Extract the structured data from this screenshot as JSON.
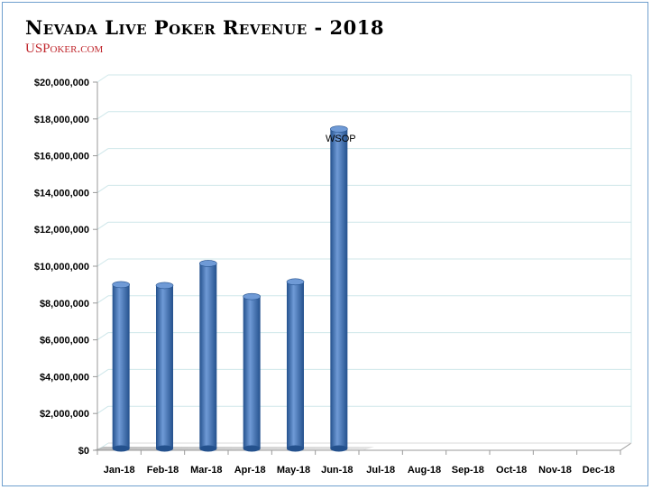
{
  "title": "Nevada Live Poker Revenue - 2018",
  "source": "USPoker.com",
  "colors": {
    "bar": "#3f73b8",
    "bar_light": "#6f9ad6",
    "bar_dark": "#24518d",
    "frame": "#6f9fce",
    "grid": "#cfe7ea",
    "source": "#c0272d"
  },
  "chart_data": {
    "type": "bar",
    "title": "Nevada Live Poker Revenue - 2018",
    "xlabel": "",
    "ylabel": "",
    "categories": [
      "Jan-18",
      "Feb-18",
      "Mar-18",
      "Apr-18",
      "May-18",
      "Jun-18",
      "Jul-18",
      "Aug-18",
      "Sep-18",
      "Oct-18",
      "Nov-18",
      "Dec-18"
    ],
    "values": [
      9000000,
      8950000,
      10150000,
      8350000,
      9150000,
      17450000,
      null,
      null,
      null,
      null,
      null,
      null
    ],
    "ylim": [
      0,
      20000000
    ],
    "yticks": [
      0,
      2000000,
      4000000,
      6000000,
      8000000,
      10000000,
      12000000,
      14000000,
      16000000,
      18000000,
      20000000
    ],
    "ytick_labels": [
      "$0",
      "$2,000,000",
      "$4,000,000",
      "$6,000,000",
      "$8,000,000",
      "$10,000,000",
      "$12,000,000",
      "$14,000,000",
      "$16,000,000",
      "$18,000,000",
      "$20,000,000"
    ],
    "grid": true,
    "legend": "none",
    "annotations": [
      {
        "category": "Jun-18",
        "text": "WSOP"
      }
    ]
  }
}
